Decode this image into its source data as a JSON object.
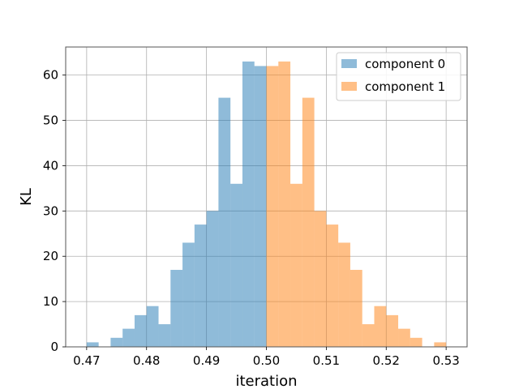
{
  "chart_data": {
    "type": "bar",
    "xlabel": "iteration",
    "ylabel": "KL",
    "xlim": [
      0.4665,
      0.5335
    ],
    "ylim": [
      0,
      66.2
    ],
    "grid": true,
    "legend_placement": "top-right",
    "bin_width": 0.002,
    "x_ticks": [
      "0.47",
      "0.48",
      "0.49",
      "0.50",
      "0.51",
      "0.52",
      "0.53"
    ],
    "x_tick_values": [
      0.47,
      0.48,
      0.49,
      0.5,
      0.51,
      0.52,
      0.53
    ],
    "y_ticks": [
      "0",
      "10",
      "20",
      "30",
      "40",
      "50",
      "60"
    ],
    "y_tick_values": [
      0,
      10,
      20,
      30,
      40,
      50,
      60
    ],
    "series": [
      {
        "name": "component 0",
        "color": "#1f77b4",
        "bin_starts": [
          0.47,
          0.472,
          0.474,
          0.476,
          0.478,
          0.48,
          0.482,
          0.484,
          0.486,
          0.488,
          0.49,
          0.492,
          0.494,
          0.496,
          0.498
        ],
        "values": [
          1,
          0,
          2,
          4,
          7,
          9,
          5,
          17,
          23,
          27,
          30,
          55,
          36,
          63,
          62
        ]
      },
      {
        "name": "component 1",
        "color": "#ff7f0e",
        "bin_starts": [
          0.5,
          0.502,
          0.504,
          0.506,
          0.508,
          0.51,
          0.512,
          0.514,
          0.516,
          0.518,
          0.52,
          0.522,
          0.524,
          0.526,
          0.528
        ],
        "values": [
          62,
          63,
          36,
          55,
          30,
          27,
          23,
          17,
          5,
          9,
          7,
          4,
          2,
          0,
          1
        ]
      }
    ]
  }
}
